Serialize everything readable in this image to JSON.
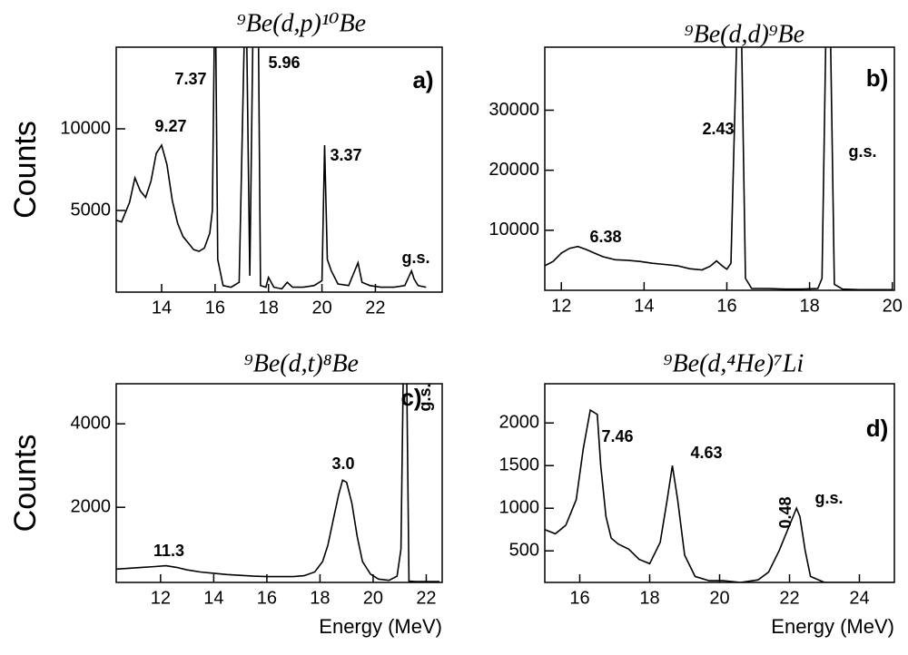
{
  "chart_data": [
    {
      "type": "line",
      "title": "⁹Be(d,p)¹⁰Be",
      "y_label": "Counts",
      "panel_label": "a)",
      "annotations": [
        "7.37",
        "5.96",
        "9.27",
        "3.37",
        "g.s."
      ],
      "xlim": [
        12.3,
        24.5
      ],
      "xticks": [
        14,
        16,
        18,
        20,
        22
      ],
      "ylim": [
        0,
        15000
      ],
      "yticks": [
        5000,
        10000
      ],
      "series": [
        {
          "color": "#000000",
          "x": [
            12.3,
            12.5,
            12.8,
            13.0,
            13.2,
            13.4,
            13.6,
            13.8,
            14.0,
            14.2,
            14.4,
            14.6,
            14.8,
            15.0,
            15.2,
            15.4,
            15.6,
            15.8,
            15.9,
            16.0,
            16.1,
            16.3,
            16.6,
            16.9,
            17.15,
            17.3,
            17.45,
            17.6,
            17.7,
            17.9,
            18.0,
            18.2,
            18.5,
            18.7,
            18.9,
            19.3,
            19.7,
            20.0,
            20.1,
            20.2,
            20.35,
            20.6,
            21.0,
            21.35,
            21.5,
            21.8,
            22.2,
            22.7,
            23.1,
            23.35,
            23.45,
            23.6,
            23.9
          ],
          "values": [
            4400,
            4300,
            5500,
            7000,
            6200,
            5800,
            6800,
            8500,
            9000,
            7800,
            5600,
            4200,
            3400,
            3000,
            2600,
            2500,
            2700,
            3600,
            5000,
            20000,
            2000,
            400,
            300,
            600,
            20000,
            1000,
            20000,
            20000,
            400,
            300,
            900,
            300,
            200,
            600,
            300,
            300,
            400,
            700,
            9000,
            2000,
            1300,
            500,
            400,
            1800,
            600,
            400,
            300,
            300,
            400,
            1300,
            800,
            400,
            300
          ]
        }
      ]
    },
    {
      "type": "line",
      "title": "⁹Be(d,d)⁹Be",
      "panel_label": "b)",
      "annotations": [
        "6.38",
        "2.43",
        "g.s."
      ],
      "xlim": [
        11.6,
        20.05
      ],
      "xticks": [
        12,
        14,
        16,
        18,
        20
      ],
      "ylim": [
        0,
        40500
      ],
      "yticks": [
        10000,
        20000,
        30000
      ],
      "series": [
        {
          "color": "#000000",
          "x": [
            11.6,
            11.8,
            12.0,
            12.2,
            12.4,
            12.6,
            12.8,
            13.0,
            13.3,
            13.6,
            13.9,
            14.2,
            14.5,
            14.8,
            15.1,
            15.4,
            15.6,
            15.75,
            15.9,
            16.0,
            16.1,
            16.25,
            16.35,
            16.45,
            16.6,
            17.0,
            17.4,
            17.8,
            18.2,
            18.3,
            18.4,
            18.5,
            18.6,
            18.8,
            19.2,
            19.6,
            20.0
          ],
          "values": [
            4100,
            4800,
            6200,
            7000,
            7300,
            6800,
            6200,
            5600,
            5100,
            5000,
            4800,
            4500,
            4300,
            4100,
            3600,
            3400,
            4000,
            4900,
            4000,
            3500,
            4500,
            45000,
            45000,
            2000,
            300,
            300,
            200,
            200,
            300,
            2000,
            45000,
            45000,
            1000,
            200,
            100,
            100,
            100
          ]
        }
      ]
    },
    {
      "type": "line",
      "title": "⁹Be(d,t)⁸Be",
      "y_label": "Counts",
      "x_label": "Energy (MeV)",
      "panel_label": "c)",
      "annotations": [
        "11.3",
        "3.0",
        "g.s."
      ],
      "xlim": [
        10.33,
        22.6
      ],
      "xticks": [
        12,
        14,
        16,
        18,
        20,
        22
      ],
      "ylim": [
        200,
        4960
      ],
      "yticks": [
        2000,
        4000
      ],
      "series": [
        {
          "color": "#000000",
          "x": [
            10.33,
            10.8,
            11.3,
            11.8,
            12.2,
            12.6,
            13.0,
            13.5,
            14.0,
            14.5,
            15.0,
            15.5,
            16.0,
            16.5,
            17.0,
            17.4,
            17.8,
            18.1,
            18.3,
            18.5,
            18.7,
            18.85,
            19.0,
            19.2,
            19.4,
            19.6,
            19.9,
            20.2,
            20.6,
            20.9,
            21.05,
            21.15,
            21.25,
            21.35,
            21.6,
            22.0,
            22.5
          ],
          "values": [
            520,
            540,
            560,
            580,
            600,
            560,
            500,
            450,
            420,
            390,
            370,
            350,
            340,
            340,
            340,
            360,
            450,
            700,
            1100,
            1700,
            2300,
            2650,
            2600,
            2100,
            1300,
            700,
            400,
            280,
            250,
            350,
            1000,
            6000,
            6000,
            230,
            220,
            220,
            220
          ]
        }
      ]
    },
    {
      "type": "line",
      "title": "⁹Be(d,⁴He)⁷Li",
      "x_label": "Energy (MeV)",
      "panel_label": "d)",
      "annotations": [
        "7.46",
        "4.63",
        "0.48",
        "g.s."
      ],
      "xlim": [
        15,
        25
      ],
      "xticks": [
        16,
        18,
        20,
        22,
        24
      ],
      "ylim": [
        130,
        2460
      ],
      "yticks": [
        500,
        1000,
        1500,
        2000
      ],
      "series": [
        {
          "color": "#000000",
          "x": [
            15.0,
            15.3,
            15.6,
            15.9,
            16.1,
            16.3,
            16.5,
            16.6,
            16.75,
            16.9,
            17.1,
            17.4,
            17.7,
            18.0,
            18.3,
            18.5,
            18.65,
            18.8,
            19.0,
            19.3,
            19.7,
            20.1,
            20.6,
            21.1,
            21.4,
            21.7,
            22.0,
            22.2,
            22.3,
            22.45,
            22.6,
            23.0,
            24.0,
            25.0
          ],
          "values": [
            750,
            700,
            800,
            1100,
            1700,
            2150,
            2100,
            1500,
            900,
            650,
            580,
            520,
            400,
            350,
            600,
            1100,
            1500,
            1100,
            450,
            200,
            150,
            150,
            130,
            160,
            250,
            500,
            800,
            1000,
            900,
            500,
            200,
            130,
            130,
            130
          ]
        }
      ]
    }
  ]
}
